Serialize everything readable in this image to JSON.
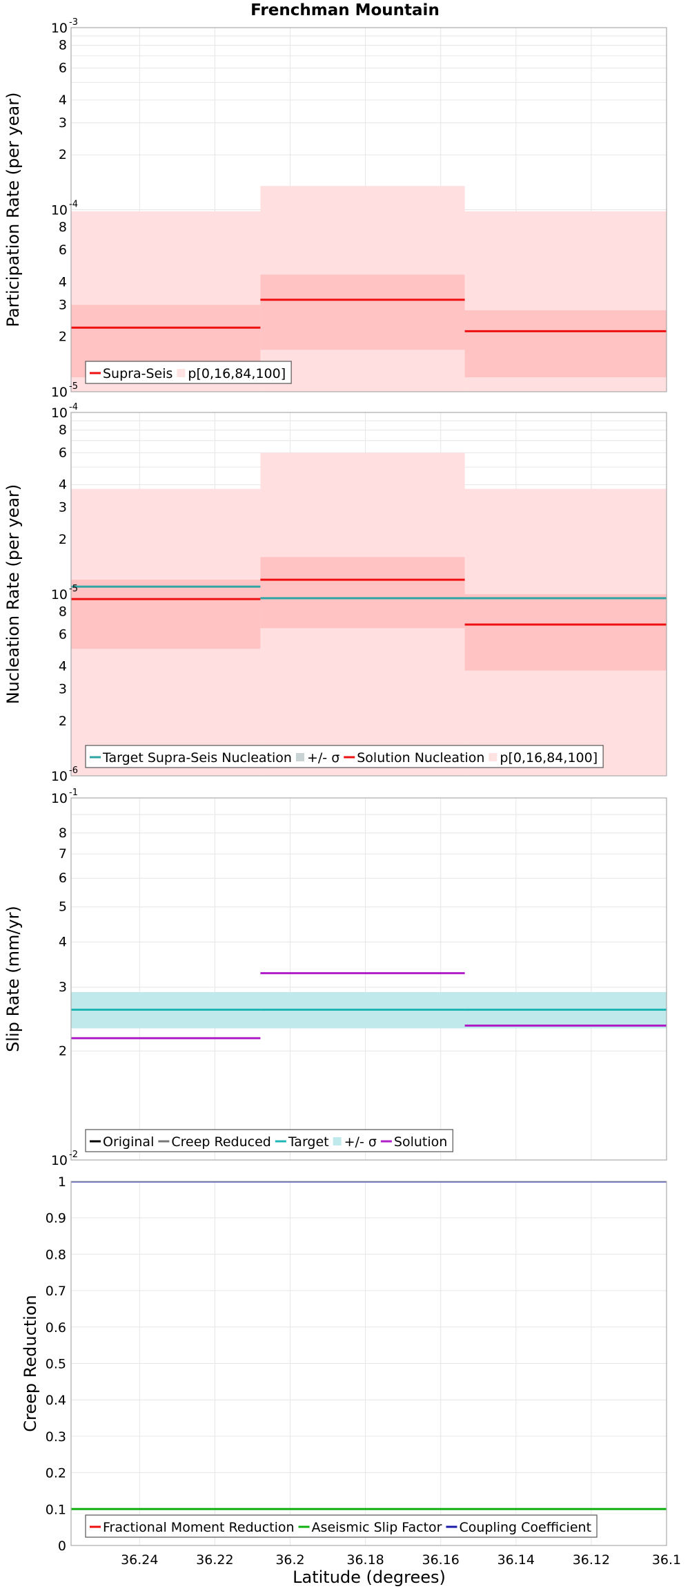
{
  "title": "Frenchman Mountain",
  "xlabel": "Latitude (degrees)",
  "x_ticks": [
    "36.24",
    "36.22",
    "36.2",
    "36.18",
    "36.16",
    "36.14",
    "36.12",
    "36.1"
  ],
  "chart_data": [
    {
      "type": "line",
      "ylabel": "Participation Rate (per year)",
      "yscale": "log",
      "ylim": [
        1e-05,
        0.001
      ],
      "xlim": [
        36.2582,
        36.1
      ],
      "series": [
        {
          "name": "Supra-Seis",
          "color": "#ee1010",
          "segments": [
            [
              36.2582,
              36.2079,
              2.25e-05
            ],
            [
              36.2079,
              36.1536,
              3.2e-05
            ],
            [
              36.1536,
              36.1,
              2.15e-05
            ]
          ]
        },
        {
          "name": "p[0,16,84,100]",
          "color": "#ffc9c9",
          "bands": [
            [
              36.2582,
              36.2079,
              1e-05,
              9.8e-05,
              1.2e-05,
              3e-05
            ],
            [
              36.2079,
              36.1536,
              1e-05,
              0.000135,
              1.7e-05,
              4.4e-05
            ],
            [
              36.1536,
              36.1,
              1e-05,
              9.8e-05,
              1.2e-05,
              2.8e-05
            ]
          ]
        }
      ],
      "legend": [
        "Supra-Seis",
        "p[0,16,84,100]"
      ]
    },
    {
      "type": "line",
      "ylabel": "Nucleation Rate (per year)",
      "yscale": "log",
      "ylim": [
        1e-06,
        0.0001
      ],
      "xlim": [
        36.2582,
        36.1
      ],
      "series": [
        {
          "name": "Target Supra-Seis Nucleation",
          "color": "#2fa5a5",
          "segments": [
            [
              36.2582,
              36.2079,
              1.1e-05
            ],
            [
              36.2079,
              36.1536,
              9.5e-06
            ],
            [
              36.1536,
              36.1,
              9.5e-06
            ]
          ]
        },
        {
          "name": "+/- σ",
          "color": "#9aa7a7",
          "bands": [
            [
              36.2582,
              36.2079,
              1e-05,
              1.23e-05
            ],
            [
              36.2079,
              36.1536,
              8.4e-06,
              1.08e-05
            ],
            [
              36.1536,
              36.1,
              8.5e-06,
              1.08e-05
            ]
          ]
        },
        {
          "name": "Solution Nucleation",
          "color": "#ee1010",
          "segments": [
            [
              36.2582,
              36.2079,
              9.4e-06
            ],
            [
              36.2079,
              36.1536,
              1.2e-05
            ],
            [
              36.1536,
              36.1,
              6.8e-06
            ]
          ]
        },
        {
          "name": "p[0,16,84,100]",
          "color": "#ffc9c9",
          "bands": [
            [
              36.2582,
              36.2079,
              1e-06,
              3.8e-05,
              5e-06,
              1.2e-05
            ],
            [
              36.2079,
              36.1536,
              1e-06,
              6e-05,
              6.5e-06,
              1.6e-05
            ],
            [
              36.1536,
              36.1,
              1e-06,
              3.8e-05,
              3.8e-06,
              1e-05
            ]
          ]
        }
      ],
      "legend": [
        "Target Supra-Seis Nucleation",
        "+/- σ",
        "Solution Nucleation",
        "p[0,16,84,100]"
      ]
    },
    {
      "type": "line",
      "ylabel": "Slip Rate (mm/yr)",
      "yscale": "log",
      "ylim": [
        0.01,
        0.1
      ],
      "xlim": [
        36.2582,
        36.1
      ],
      "series": [
        {
          "name": "Original",
          "color": "#000000",
          "segments": []
        },
        {
          "name": "Creep Reduced",
          "color": "#777777",
          "segments": []
        },
        {
          "name": "Target",
          "color": "#1fb5b5",
          "segments": [
            [
              36.2582,
              36.2079,
              0.026
            ],
            [
              36.2079,
              36.1536,
              0.026
            ],
            [
              36.1536,
              36.1,
              0.026
            ]
          ]
        },
        {
          "name": "+/- σ",
          "color": "#bfe9ea",
          "bands": [
            [
              36.2582,
              36.1,
              0.0231,
              0.0291
            ]
          ]
        },
        {
          "name": "Solution",
          "color": "#b01ec8",
          "segments": [
            [
              36.2582,
              36.2079,
              0.0217
            ],
            [
              36.2079,
              36.1536,
              0.0328
            ],
            [
              36.1536,
              36.1,
              0.0235
            ]
          ]
        }
      ],
      "legend": [
        "Original",
        "Creep Reduced",
        "Target",
        "+/- σ",
        "Solution"
      ]
    },
    {
      "type": "line",
      "ylabel": "Creep Reduction",
      "yscale": "linear",
      "ylim": [
        0,
        1
      ],
      "xlim": [
        36.2582,
        36.1
      ],
      "yticks": [
        "0",
        "0.1",
        "0.2",
        "0.3",
        "0.4",
        "0.5",
        "0.6",
        "0.7",
        "0.8",
        "0.9",
        "1"
      ],
      "series": [
        {
          "name": "Fractional Moment Reduction",
          "color": "#ee1010",
          "segments": []
        },
        {
          "name": "Aseismic Slip Factor",
          "color": "#11b011",
          "segments": [
            [
              36.2582,
              36.1,
              0.1
            ]
          ]
        },
        {
          "name": "Coupling Coefficient",
          "color": "#1a1aa8",
          "segments": [
            [
              36.2582,
              36.1,
              1.0
            ]
          ]
        }
      ],
      "legend": [
        "Fractional Moment Reduction",
        "Aseismic Slip Factor",
        "Coupling Coefficient"
      ]
    }
  ],
  "y_exp_labels": {
    "p0": [
      "10",
      "-3",
      "10",
      "-4",
      "10",
      "-5"
    ],
    "p1": [
      "10",
      "-4",
      "10",
      "-5",
      "10",
      "-6"
    ],
    "p2": [
      "10",
      "-1",
      "10",
      "-2"
    ]
  },
  "y_minor_labels": {
    "p0": [
      "8",
      "6",
      "4",
      "3",
      "2",
      "8",
      "6",
      "4",
      "3",
      "2"
    ],
    "p1": [
      "8",
      "6",
      "4",
      "3",
      "2",
      "8",
      "6",
      "4",
      "3",
      "2"
    ],
    "p2": [
      "8",
      "7",
      "6",
      "5",
      "4",
      "3",
      "2"
    ]
  }
}
